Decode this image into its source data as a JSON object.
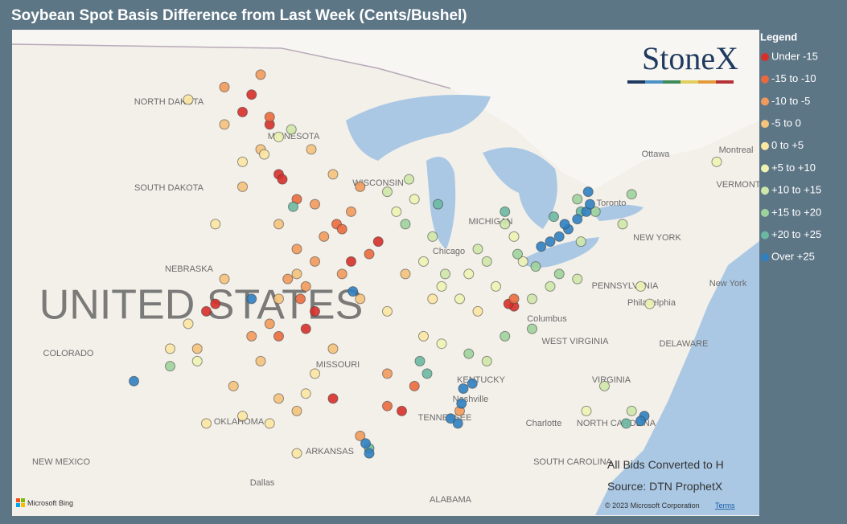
{
  "title": "Soybean Spot Basis Difference from Last Week (Cents/Bushel)",
  "logo": "StoneX",
  "notes": [
    "All Bids Converted to H",
    "Source: DTN ProphetX"
  ],
  "credits": {
    "provider": "Microsoft Bing",
    "copyright": "© 2023 Microsoft Corporation",
    "terms": "Terms"
  },
  "map": {
    "labels": [
      "NORTH DAKOTA",
      "MINNESOTA",
      "SOUTH DAKOTA",
      "NEBRASKA",
      "UNITED STATES",
      "COLORADO",
      "MISSOURI",
      "KENTUCKY",
      "TENNESSEE",
      "OKLAHOMA",
      "ARKANSAS",
      "NEW MEXICO",
      "Dallas",
      "ALABAMA",
      "SOUTH CAROLINA",
      "NORTH CAROLINA",
      "Charlotte",
      "VIRGINIA",
      "WEST VIRGINIA",
      "PENNSYLVANIA",
      "NEW YORK",
      "New York",
      "Philadelphia",
      "DELAWARE",
      "Columbus",
      "Chicago",
      "Nashville",
      "Ottawa",
      "Montreal",
      "Toronto",
      "VERMONT",
      "MICHIGAN",
      "WISCONSIN"
    ],
    "legend_title": "Legend",
    "classes": [
      {
        "name": "Under -15",
        "color": "#d7302a",
        "lon": [
          -99,
          -98.5,
          -97.5,
          -97,
          -96.8,
          -100.5,
          -101,
          -95,
          -95.5,
          -93,
          -91.5,
          -94,
          -90.2,
          -84,
          -84.3
        ],
        "lat": [
          47.5,
          48.2,
          47,
          45,
          44.8,
          39.8,
          39.5,
          39.5,
          38.8,
          41.5,
          42.3,
          36,
          35.5,
          39.7,
          39.8
        ]
      },
      {
        "name": "-15 to -10",
        "color": "#ea6a3e",
        "lon": [
          -97.5,
          -96,
          -93.8,
          -93.5,
          -95.8,
          -97,
          -92,
          -91,
          -89.5,
          -84
        ],
        "lat": [
          47.3,
          44,
          43,
          42.8,
          40,
          38.5,
          41.8,
          35.7,
          36.5,
          40
        ]
      },
      {
        "name": "-10 to -5",
        "color": "#f19a5c",
        "lon": [
          -96,
          -95,
          -94.5,
          -96.5,
          -97.5,
          -95,
          -93,
          -92.5,
          -98,
          -100,
          -95.5,
          -93.5,
          -98.5,
          -91,
          -87,
          -92.5
        ],
        "lat": [
          42,
          41.5,
          42.5,
          40.8,
          39,
          43.8,
          43.5,
          44.5,
          49,
          48.5,
          40.5,
          41,
          38.5,
          37,
          35.5,
          34.5
        ]
      },
      {
        "name": "-5 to 0",
        "color": "#f5c27c",
        "lon": [
          -100,
          -98,
          -99,
          -97,
          -96,
          -97,
          -98,
          -99.5,
          -97,
          -96,
          -94,
          -92.5,
          -90,
          -100,
          -94,
          -95.2,
          -101.5
        ],
        "lat": [
          47,
          46,
          44.5,
          43,
          41,
          40,
          37.5,
          36.5,
          36,
          35.5,
          38,
          40,
          41,
          40.8,
          45,
          46,
          38
        ]
      },
      {
        "name": "0 to +5",
        "color": "#fbe6a2",
        "lon": [
          -102,
          -99,
          -101,
          -99,
          -97.5,
          -103,
          -102,
          -95,
          -91,
          -88.5,
          -89,
          -86,
          -97.8,
          -100.5,
          -95.5,
          -96
        ],
        "lat": [
          48,
          45.5,
          35,
          35.3,
          35,
          38,
          39,
          37,
          39.5,
          40,
          38.5,
          39.5,
          45.8,
          43,
          36.2,
          33.8
        ]
      },
      {
        "name": "+5 to +10",
        "color": "#eef3b2",
        "lon": [
          -89,
          -88,
          -87,
          -86.5,
          -85,
          -90.5,
          -89.5,
          -88,
          -84,
          -83.5,
          -77,
          -76.5,
          -80,
          -72.8,
          -97,
          -101.5
        ],
        "lat": [
          41.5,
          40.5,
          40,
          41,
          40.5,
          43.5,
          44,
          38.2,
          42.5,
          41.5,
          40.5,
          39.8,
          35.5,
          45.5,
          46.5,
          37.5
        ]
      },
      {
        "name": "+10 to +15",
        "color": "#cfe7a9",
        "lon": [
          -88.5,
          -87.8,
          -86,
          -85.5,
          -84.5,
          -83,
          -82,
          -80.5,
          -89.8,
          -91,
          -96.3,
          -85.5,
          -79,
          -77.5,
          -80.3,
          -78
        ],
        "lat": [
          42.5,
          41,
          42,
          41.5,
          43,
          40,
          40.5,
          40.8,
          44.8,
          44.3,
          46.8,
          37.5,
          36.5,
          35.5,
          42.3,
          43
        ]
      },
      {
        "name": "+15 to +20",
        "color": "#9fd29b",
        "lon": [
          -82.8,
          -81.5,
          -83.8,
          -84.5,
          -83,
          -90,
          -103,
          -79.5,
          -80.5,
          -77.5,
          -86.5
        ],
        "lat": [
          41.3,
          41,
          41.8,
          38.5,
          38.8,
          43,
          37.3,
          43.5,
          44,
          44.2,
          37.8
        ]
      },
      {
        "name": "+20 to +25",
        "color": "#6bb8a2",
        "lon": [
          -84.5,
          -88.2,
          -96.2,
          -88.8,
          -89.2,
          -92,
          -77.8,
          -81.8,
          -80.3
        ],
        "lat": [
          43.5,
          43.8,
          43.7,
          37,
          37.5,
          34,
          35,
          43.3,
          43.5
        ]
      },
      {
        "name": "Over +25",
        "color": "#2f7fc1",
        "lon": [
          -80.5,
          -81,
          -81.5,
          -82,
          -82.5,
          -80,
          -79.8,
          -81.2,
          -79.9,
          -86.8,
          -86.3,
          -87.5,
          -87.1,
          -86.9,
          -92.2,
          -92,
          -98.5,
          -92.9,
          -105,
          -76.8,
          -77
        ],
        "lat": [
          43.2,
          42.8,
          42.5,
          42.3,
          42.1,
          43.5,
          43.8,
          43,
          44.3,
          36.4,
          36.6,
          35.2,
          35,
          35.8,
          34.2,
          33.8,
          40,
          40.3,
          36.7,
          35.3,
          35.1
        ]
      }
    ]
  }
}
